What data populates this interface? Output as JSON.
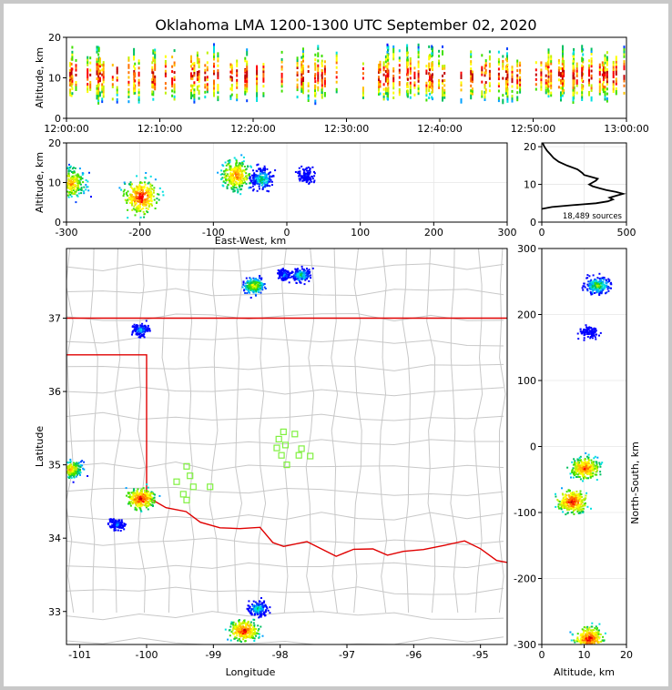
{
  "figure": {
    "title": "Oklahoma LMA 1200-1300 UTC September 02, 2020"
  },
  "colors": {
    "density": [
      "#0000ff",
      "#0040ff",
      "#00a0ff",
      "#00e0e0",
      "#00c060",
      "#40e000",
      "#c0f000",
      "#ffff00",
      "#ffc000",
      "#ff7000",
      "#ff0000",
      "#c00000"
    ],
    "state_border": "#e00000",
    "county_lines": "#c8c8c8",
    "stations": "#80f040"
  },
  "chart_data": [
    {
      "id": "time-height",
      "type": "heatmap",
      "xlabel": "",
      "ylabel": "Altitude, km",
      "x_ticks": [
        "12:00:00",
        "12:10:00",
        "12:20:00",
        "12:30:00",
        "12:40:00",
        "12:50:00",
        "13:00:00"
      ],
      "y_ticks": [
        0,
        10,
        20
      ],
      "xlim": [
        "12:00:00",
        "13:00:00"
      ],
      "ylim": [
        0,
        20
      ],
      "altitude_band_km": [
        4,
        19
      ]
    },
    {
      "id": "ew-height",
      "type": "heatmap",
      "xlabel": "East-West, km",
      "ylabel": "Altitude, km",
      "x_ticks": [
        -300,
        -200,
        -100,
        0,
        100,
        200,
        300
      ],
      "y_ticks": [
        0,
        10,
        20
      ],
      "xlim": [
        -300,
        300
      ],
      "ylim": [
        0,
        20
      ],
      "clusters": [
        {
          "x": -295,
          "y": 10,
          "intensity": 0.85
        },
        {
          "x": -200,
          "y": 6.5,
          "intensity": 1.0
        },
        {
          "x": -70,
          "y": 12,
          "intensity": 0.9
        },
        {
          "x": -35,
          "y": 11,
          "intensity": 0.5
        },
        {
          "x": 25,
          "y": 12,
          "intensity": 0.2
        }
      ]
    },
    {
      "id": "altitude-histogram",
      "type": "line",
      "xlabel": "",
      "ylabel": "",
      "x_ticks": [
        0,
        500
      ],
      "y_ticks": [
        0,
        10,
        20
      ],
      "xlim": [
        0,
        500
      ],
      "ylim": [
        0,
        21
      ],
      "annotation": "18,489 sources",
      "points": [
        [
          0,
          3.5
        ],
        [
          60,
          4
        ],
        [
          180,
          4.5
        ],
        [
          320,
          5
        ],
        [
          390,
          5.5
        ],
        [
          420,
          6
        ],
        [
          400,
          6.5
        ],
        [
          440,
          7
        ],
        [
          480,
          7.5
        ],
        [
          440,
          8
        ],
        [
          380,
          8.5
        ],
        [
          340,
          9
        ],
        [
          300,
          9.5
        ],
        [
          280,
          10
        ],
        [
          300,
          10.5
        ],
        [
          320,
          11
        ],
        [
          330,
          11.5
        ],
        [
          290,
          12
        ],
        [
          250,
          12.5
        ],
        [
          240,
          13
        ],
        [
          210,
          14
        ],
        [
          150,
          15
        ],
        [
          100,
          16
        ],
        [
          70,
          17
        ],
        [
          50,
          18
        ],
        [
          30,
          19
        ],
        [
          15,
          20
        ],
        [
          5,
          21
        ]
      ]
    },
    {
      "id": "plan-view",
      "type": "heatmap",
      "xlabel": "Longitude",
      "ylabel": "Latitude",
      "x_ticks": [
        -101,
        -100,
        -99,
        -98,
        -97,
        -96,
        -95
      ],
      "y_ticks": [
        33,
        34,
        35,
        36,
        37
      ],
      "xlim": [
        -101.2,
        -94.6
      ],
      "ylim": [
        32.55,
        37.95
      ],
      "clusters": [
        {
          "lon": -101.15,
          "lat": 34.95,
          "intensity": 0.8
        },
        {
          "lon": -100.1,
          "lat": 34.55,
          "intensity": 1.0
        },
        {
          "lon": -100.45,
          "lat": 34.2,
          "intensity": 0.3
        },
        {
          "lon": -98.55,
          "lat": 32.75,
          "intensity": 1.0
        },
        {
          "lon": -98.35,
          "lat": 33.05,
          "intensity": 0.5
        },
        {
          "lon": -98.4,
          "lat": 37.45,
          "intensity": 0.7
        },
        {
          "lon": -97.95,
          "lat": 37.6,
          "intensity": 0.3
        },
        {
          "lon": -97.7,
          "lat": 37.6,
          "intensity": 0.5
        },
        {
          "lon": -100.1,
          "lat": 36.85,
          "intensity": 0.4
        }
      ],
      "stations": [
        [
          -97.95,
          35.45
        ],
        [
          -97.78,
          35.42
        ],
        [
          -98.02,
          35.35
        ],
        [
          -97.92,
          35.27
        ],
        [
          -98.05,
          35.23
        ],
        [
          -97.68,
          35.22
        ],
        [
          -97.55,
          35.12
        ],
        [
          -97.72,
          35.13
        ],
        [
          -97.98,
          35.13
        ],
        [
          -97.9,
          35.0
        ],
        [
          -99.4,
          34.98
        ],
        [
          -99.35,
          34.85
        ],
        [
          -99.55,
          34.77
        ],
        [
          -99.3,
          34.7
        ],
        [
          -99.05,
          34.7
        ],
        [
          -99.45,
          34.6
        ],
        [
          -99.4,
          34.52
        ]
      ]
    },
    {
      "id": "ns-height",
      "type": "heatmap",
      "xlabel": "Altitude, km",
      "ylabel": "North-South, km",
      "x_ticks": [
        0,
        10,
        20
      ],
      "y_ticks": [
        300,
        200,
        100,
        0,
        -100,
        -200,
        -300
      ],
      "xlim": [
        0,
        20
      ],
      "ylim": [
        -300,
        300
      ],
      "clusters": [
        {
          "x": 13,
          "y": 245,
          "intensity": 0.6
        },
        {
          "x": 11,
          "y": 175,
          "intensity": 0.2
        },
        {
          "x": 10,
          "y": -32,
          "intensity": 0.95
        },
        {
          "x": 7,
          "y": -82,
          "intensity": 1.0
        },
        {
          "x": 11,
          "y": -290,
          "intensity": 1.0
        }
      ]
    }
  ]
}
